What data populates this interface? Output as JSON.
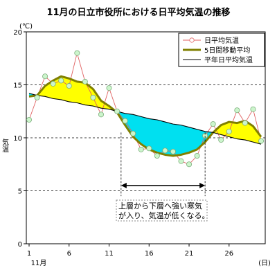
{
  "chart_data": {
    "type": "line",
    "title": "11月の日立市役所における日平均気温の推移",
    "ylabel": "気温",
    "yunit": "(℃)",
    "xunit": "(日)",
    "month_label": "11月",
    "ylim": [
      0,
      20
    ],
    "xlim": [
      1,
      30
    ],
    "yticks": [
      0,
      5,
      10,
      15,
      20
    ],
    "xticks": [
      1,
      6,
      11,
      16,
      21,
      26
    ],
    "grid": "horizontal-dashed",
    "legend_position": "top-right",
    "days": [
      1,
      2,
      3,
      4,
      5,
      6,
      7,
      8,
      9,
      10,
      11,
      12,
      13,
      14,
      15,
      16,
      17,
      18,
      19,
      20,
      21,
      22,
      23,
      24,
      25,
      26,
      27,
      28,
      29,
      30
    ],
    "series": [
      {
        "name": "日平均気温",
        "color": "#e06060",
        "values": [
          11.7,
          13.8,
          15.8,
          15.1,
          15.4,
          14.9,
          18.0,
          15.3,
          13.8,
          12.2,
          14.7,
          12.5,
          11.6,
          10.4,
          8.9,
          9.0,
          8.3,
          8.8,
          8.7,
          7.8,
          7.5,
          8.3,
          10.2,
          11.3,
          9.8,
          10.6,
          12.6,
          11.4,
          12.7,
          9.7
        ]
      },
      {
        "name": "5日間移動平均",
        "color": "#808000",
        "values": [
          13.9,
          14.0,
          14.9,
          15.4,
          15.8,
          15.6,
          15.3,
          15.2,
          14.6,
          13.5,
          13.0,
          12.4,
          11.2,
          10.1,
          9.4,
          8.9,
          8.6,
          8.4,
          8.3,
          8.4,
          8.6,
          8.9,
          9.6,
          10.5,
          11.2,
          11.5,
          11.4,
          11.6,
          11.1,
          10.1
        ]
      },
      {
        "name": "平年日平均気温",
        "color": "#000000",
        "values": [
          14.2,
          14.0,
          13.9,
          13.7,
          13.6,
          13.4,
          13.3,
          13.1,
          13.0,
          12.8,
          12.7,
          12.5,
          12.3,
          12.2,
          12.0,
          11.8,
          11.7,
          11.5,
          11.3,
          11.2,
          11.0,
          10.8,
          10.6,
          10.5,
          10.3,
          10.1,
          9.9,
          9.8,
          9.6,
          9.4
        ]
      }
    ],
    "fill_colors": {
      "above_normal": "#ffff00",
      "below_normal": "#00e0f0"
    },
    "annotation": {
      "arrow_from_day": 12.5,
      "arrow_to_day": 23,
      "arrow_value": 5.5,
      "lines": [
        "上層から下層へ強い寒気",
        "が入り、気温が低くなる。"
      ]
    }
  }
}
